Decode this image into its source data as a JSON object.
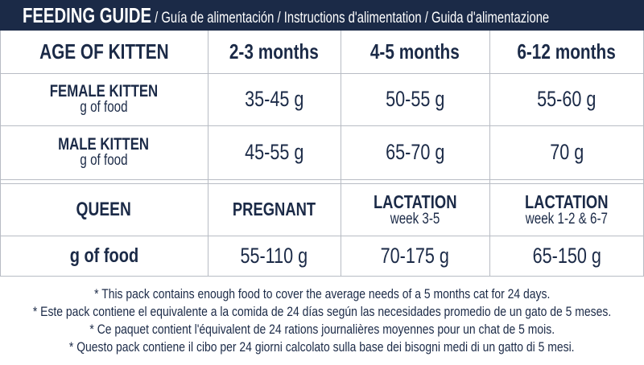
{
  "header": {
    "title": "FEEDING GUIDE",
    "subtitle": " / Guía de alimentación / Instructions d'alimentation / Guida d'alimentazione"
  },
  "kitten": {
    "header_label": "AGE OF KITTEN",
    "columns": [
      "2-3 months",
      "4-5 months",
      "6-12 months"
    ],
    "rows": [
      {
        "label": "FEMALE KITTEN",
        "sublabel": "g of food",
        "values": [
          "35-45 g",
          "50-55 g",
          "55-60 g"
        ]
      },
      {
        "label": "MALE KITTEN",
        "sublabel": "g of food",
        "values": [
          "45-55 g",
          "65-70 g",
          "70 g"
        ]
      }
    ]
  },
  "queen": {
    "header_label": "QUEEN",
    "columns": [
      {
        "label": "PREGNANT",
        "sub": ""
      },
      {
        "label": "LACTATION",
        "sub": "week 3-5"
      },
      {
        "label": "LACTATION",
        "sub": "week 1-2 & 6-7"
      }
    ],
    "row_label": "g of food",
    "values": [
      "55-110 g",
      "70-175 g",
      "65-150 g"
    ]
  },
  "footnotes": [
    "* This pack contains enough food to cover the average needs of a 5 months cat for 24 days.",
    "* Este pack contiene el equivalente a la comida de 24 días según las necesidades promedio de un gato de 5 meses.",
    "* Ce paquet contient l'équivalent de 24 rations journalières moyennes pour un chat de 5 mois.",
    "* Questo pack contiene il cibo per 24 giorni calcolato sulla base dei bisogni medi di un gatto di 5 mesi."
  ],
  "colors": {
    "navy": "#1b2a47",
    "grid": "#b8bcc4"
  }
}
